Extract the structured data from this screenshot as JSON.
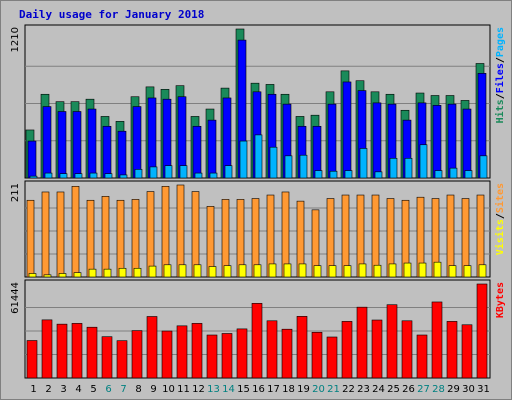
{
  "chart_data": {
    "type": "bar",
    "title": "Daily usage for January 2018",
    "categories": [
      "1",
      "2",
      "3",
      "4",
      "5",
      "6",
      "7",
      "8",
      "9",
      "10",
      "11",
      "12",
      "13",
      "14",
      "15",
      "16",
      "17",
      "18",
      "19",
      "20",
      "21",
      "22",
      "23",
      "24",
      "25",
      "26",
      "27",
      "28",
      "29",
      "30",
      "31"
    ],
    "weekend_days": [
      "6",
      "7",
      "13",
      "14",
      "20",
      "21",
      "27",
      "28"
    ],
    "panels": [
      {
        "name": "pages-files-hits",
        "max_label": "1210",
        "ymax": 1210,
        "legend": [
          "Pages",
          "/",
          "Files",
          "/",
          "Hits"
        ],
        "series": [
          {
            "name": "Hits",
            "color": "#1a8a5a",
            "values": [
              390,
              680,
              620,
              620,
              640,
              500,
              460,
              660,
              740,
              720,
              750,
              500,
              560,
              730,
              1210,
              770,
              760,
              680,
              500,
              510,
              700,
              870,
              790,
              700,
              680,
              550,
              690,
              670,
              670,
              630,
              930
            ]
          },
          {
            "name": "Files",
            "color": "#0000ff",
            "values": [
              300,
              580,
              540,
              540,
              560,
              420,
              380,
              580,
              650,
              640,
              660,
              420,
              470,
              650,
              1120,
              700,
              680,
              600,
              420,
              420,
              600,
              780,
              710,
              610,
              600,
              470,
              610,
              590,
              600,
              560,
              850
            ]
          },
          {
            "name": "Pages",
            "color": "#00b3ff",
            "values": [
              15,
              40,
              35,
              35,
              40,
              35,
              25,
              70,
              90,
              100,
              100,
              40,
              40,
              100,
              300,
              350,
              250,
              180,
              185,
              60,
              55,
              60,
              240,
              50,
              160,
              160,
              270,
              60,
              80,
              60,
              180
            ]
          }
        ]
      },
      {
        "name": "sites-visits",
        "max_label": "211",
        "ymax": 211,
        "legend": [
          "Sites",
          "/",
          "Visits"
        ],
        "series": [
          {
            "name": "Visits",
            "color": "#ff9933",
            "values": [
              176,
              195,
              195,
              208,
              176,
              185,
              176,
              178,
              196,
              208,
              211,
              196,
              162,
              178,
              178,
              180,
              188,
              195,
              174,
              154,
              180,
              188,
              188,
              188,
              180,
              176,
              183,
              180,
              188,
              180,
              188
            ]
          },
          {
            "name": "Sites",
            "color": "#ffff00",
            "values": [
              8,
              5,
              8,
              10,
              18,
              18,
              20,
              20,
              25,
              28,
              28,
              28,
              24,
              26,
              28,
              28,
              30,
              30,
              30,
              26,
              26,
              26,
              30,
              27,
              30,
              32,
              32,
              34,
              26,
              26,
              28
            ]
          }
        ]
      },
      {
        "name": "kbytes",
        "max_label": "61444",
        "ymax": 61444,
        "legend": [
          "KBytes"
        ],
        "series": [
          {
            "name": "KBytes",
            "color": "#ff0000",
            "values": [
              24500,
              38000,
              35200,
              35700,
              33200,
              27000,
              24400,
              31000,
              40200,
              30700,
              34100,
              35700,
              28100,
              29100,
              32100,
              48800,
              37400,
              31900,
              40300,
              29900,
              26800,
              37000,
              46300,
              37900,
              47900,
              37400,
              28100,
              49700,
              37000,
              34800,
              61444
            ]
          }
        ]
      }
    ],
    "colors": {
      "panel_bg": "#c0c0c0",
      "outer_bg": "#c0c0c0",
      "title": "#0000cc",
      "weekday_label": "#000000",
      "weekend_label": "#008080"
    }
  }
}
